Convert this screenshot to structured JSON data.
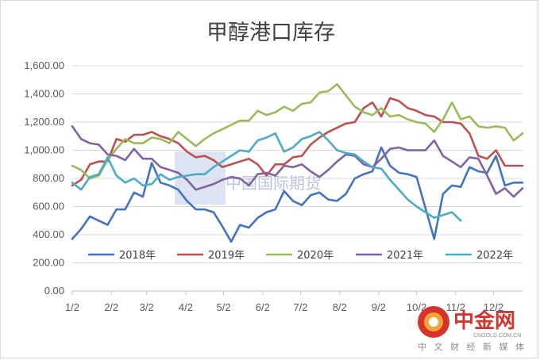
{
  "chart_data": {
    "type": "line",
    "title": "甲醇港口库存",
    "ylim": [
      0,
      1600
    ],
    "yticks": [
      "0.00",
      "200.00",
      "400.00",
      "600.00",
      "800.00",
      "1,000.00",
      "1,200.00",
      "1,400.00",
      "1,600.00"
    ],
    "ytick_values": [
      0,
      200,
      400,
      600,
      800,
      1000,
      1200,
      1400,
      1600
    ],
    "xlim": [
      1,
      52
    ],
    "xticks": [
      "1/2",
      "2/2",
      "3/2",
      "4/2",
      "5/2",
      "6/2",
      "7/2",
      "8/2",
      "9/2",
      "10/2",
      "11/2",
      "12/2"
    ],
    "xtick_values": [
      1,
      5.43,
      9.43,
      13.86,
      18.14,
      22.57,
      26.86,
      31.29,
      35.71,
      40,
      44.43,
      48.71
    ],
    "grid": "horizontal",
    "legend_position": "bottom",
    "series": [
      {
        "name": "2018年",
        "color": "#4472c4",
        "x": [
          1,
          2,
          3,
          4,
          5,
          6,
          7,
          8,
          9,
          10,
          11,
          12,
          13,
          14,
          15,
          16,
          17,
          18,
          19,
          20,
          21,
          22,
          23,
          24,
          25,
          26,
          27,
          28,
          29,
          30,
          31,
          32,
          33,
          34,
          35,
          36,
          37,
          38,
          39,
          40,
          41,
          42,
          43,
          44,
          45,
          46,
          47,
          48,
          49,
          50,
          51,
          52
        ],
        "y": [
          370,
          440,
          530,
          500,
          470,
          580,
          580,
          700,
          670,
          910,
          770,
          750,
          720,
          640,
          580,
          580,
          560,
          460,
          350,
          470,
          450,
          520,
          560,
          580,
          710,
          640,
          610,
          680,
          700,
          650,
          640,
          690,
          800,
          830,
          850,
          1020,
          890,
          840,
          830,
          810,
          590,
          370,
          690,
          750,
          740,
          880,
          850,
          840,
          960,
          750,
          770,
          770
        ]
      },
      {
        "name": "2019年",
        "color": "#c0504d",
        "x": [
          1,
          2,
          3,
          4,
          5,
          6,
          7,
          8,
          9,
          10,
          11,
          12,
          13,
          14,
          15,
          16,
          17,
          18,
          19,
          20,
          21,
          22,
          23,
          24,
          25,
          26,
          27,
          28,
          29,
          30,
          31,
          32,
          33,
          34,
          35,
          36,
          37,
          38,
          39,
          40,
          41,
          42,
          43,
          44,
          45,
          46,
          47,
          48,
          49,
          50,
          51,
          52
        ],
        "y": [
          750,
          790,
          900,
          920,
          920,
          1080,
          1060,
          1110,
          1110,
          1130,
          1100,
          1080,
          1050,
          990,
          950,
          960,
          930,
          880,
          900,
          920,
          940,
          900,
          820,
          900,
          900,
          950,
          960,
          1040,
          1090,
          1130,
          1160,
          1190,
          1200,
          1300,
          1340,
          1240,
          1370,
          1350,
          1300,
          1280,
          1250,
          1240,
          1200,
          1200,
          1190,
          1120,
          960,
          940,
          1000,
          890,
          890,
          890
        ]
      },
      {
        "name": "2020年",
        "color": "#9bbb59",
        "x": [
          1,
          2,
          3,
          4,
          5,
          6,
          7,
          8,
          9,
          10,
          11,
          12,
          13,
          14,
          15,
          16,
          17,
          18,
          19,
          20,
          21,
          22,
          23,
          24,
          25,
          26,
          27,
          28,
          29,
          30,
          31,
          32,
          33,
          34,
          35,
          36,
          37,
          38,
          39,
          40,
          41,
          42,
          43,
          44,
          45,
          46,
          47,
          48,
          49,
          50,
          51,
          52
        ],
        "y": [
          890,
          860,
          800,
          820,
          930,
          1010,
          1080,
          1050,
          1050,
          1090,
          1080,
          1050,
          1130,
          1080,
          1030,
          1080,
          1120,
          1150,
          1180,
          1210,
          1210,
          1280,
          1250,
          1270,
          1310,
          1280,
          1330,
          1340,
          1410,
          1420,
          1470,
          1390,
          1310,
          1270,
          1250,
          1300,
          1240,
          1250,
          1220,
          1200,
          1190,
          1130,
          1220,
          1340,
          1220,
          1240,
          1170,
          1160,
          1170,
          1160,
          1070,
          1120
        ]
      },
      {
        "name": "2021年",
        "color": "#8064a2",
        "x": [
          1,
          2,
          3,
          4,
          5,
          6,
          7,
          8,
          9,
          10,
          11,
          12,
          13,
          14,
          15,
          16,
          17,
          18,
          19,
          20,
          21,
          22,
          23,
          24,
          25,
          26,
          27,
          28,
          29,
          30,
          31,
          32,
          33,
          34,
          35,
          36,
          37,
          38,
          39,
          40,
          41,
          42,
          43,
          44,
          45,
          46,
          47,
          48,
          49,
          50,
          51,
          52
        ],
        "y": [
          1170,
          1080,
          1050,
          1040,
          970,
          960,
          930,
          1010,
          940,
          940,
          880,
          860,
          840,
          790,
          720,
          740,
          760,
          790,
          810,
          800,
          750,
          830,
          840,
          820,
          890,
          880,
          900,
          850,
          810,
          860,
          920,
          970,
          960,
          900,
          880,
          940,
          1010,
          1020,
          1000,
          1000,
          1000,
          1070,
          960,
          920,
          880,
          950,
          940,
          820,
          690,
          730,
          670,
          730
        ]
      },
      {
        "name": "2022年",
        "color": "#4bacc6",
        "x": [
          1,
          2,
          3,
          4,
          5,
          6,
          7,
          8,
          9,
          10,
          11,
          12,
          13,
          14,
          15,
          16,
          17,
          18,
          19,
          20,
          21,
          22,
          23,
          24,
          25,
          26,
          27,
          28,
          29,
          30,
          31,
          32,
          33,
          34,
          35,
          36,
          37,
          38,
          39,
          40,
          41,
          42,
          43,
          44,
          45
        ],
        "y": [
          770,
          720,
          810,
          830,
          950,
          820,
          770,
          800,
          750,
          760,
          830,
          790,
          810,
          820,
          830,
          830,
          880,
          920,
          960,
          1000,
          990,
          1070,
          1090,
          1120,
          990,
          1020,
          1080,
          1100,
          1130,
          1070,
          1000,
          980,
          970,
          920,
          880,
          870,
          790,
          720,
          650,
          600,
          560,
          520,
          540,
          560,
          500
        ]
      }
    ]
  },
  "watermark": {
    "text": "中国国际期货"
  },
  "logo": {
    "brand_text": "中金网",
    "sub_text": "CNGOLD.COM.CN",
    "tagline": "中 文 财 经 新 媒 体",
    "color": "#d7332a"
  }
}
